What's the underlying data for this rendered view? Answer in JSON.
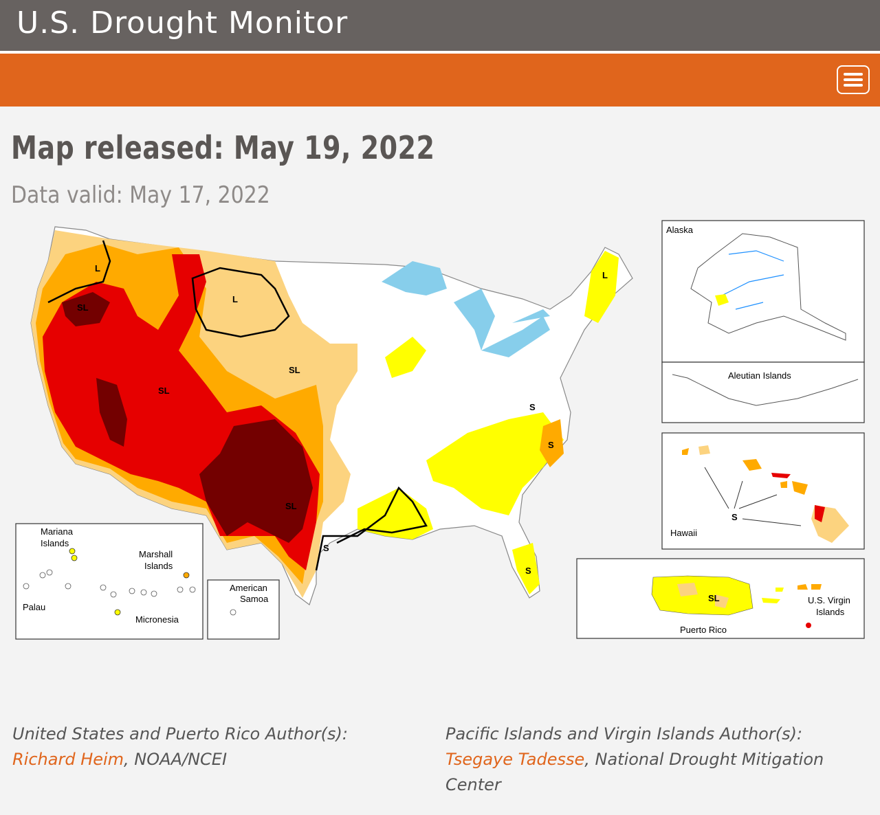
{
  "header": {
    "site_title": "U.S. Drought Monitor",
    "menu_icon": "hamburger-menu-icon"
  },
  "release": {
    "map_released": "Map released: May 19, 2022",
    "data_valid": "Data valid: May 17, 2022"
  },
  "map": {
    "labels": {
      "alaska": "Alaska",
      "aleutian": "Aleutian Islands",
      "hawaii": "Hawaii",
      "mariana": [
        "Mariana",
        "Islands"
      ],
      "marshall": [
        "Marshall",
        "Islands"
      ],
      "palau": "Palau",
      "micronesia": "Micronesia",
      "samoa": [
        "American",
        "Samoa"
      ],
      "puerto_rico": "Puerto Rico",
      "virgin": [
        "U.S. Virgin",
        "Islands"
      ]
    },
    "impact_labels": {
      "L": "L",
      "SL": "SL",
      "S": "S"
    },
    "colors": {
      "D0": "#ffff00",
      "D1": "#fcd37f",
      "D2": "#ffaa00",
      "D3": "#e60000",
      "D4": "#730000",
      "water": "#87ceeb"
    }
  },
  "authors": {
    "us_heading": "United States and Puerto Rico Author(s):",
    "us_name": "Richard Heim",
    "us_org": ", NOAA/NCEI",
    "pi_heading": "Pacific Islands and Virgin Islands Author(s):",
    "pi_name": "Tsegaye Tadesse",
    "pi_org_1": ", National Drought Mitigation",
    "pi_org_2": "Center"
  }
}
